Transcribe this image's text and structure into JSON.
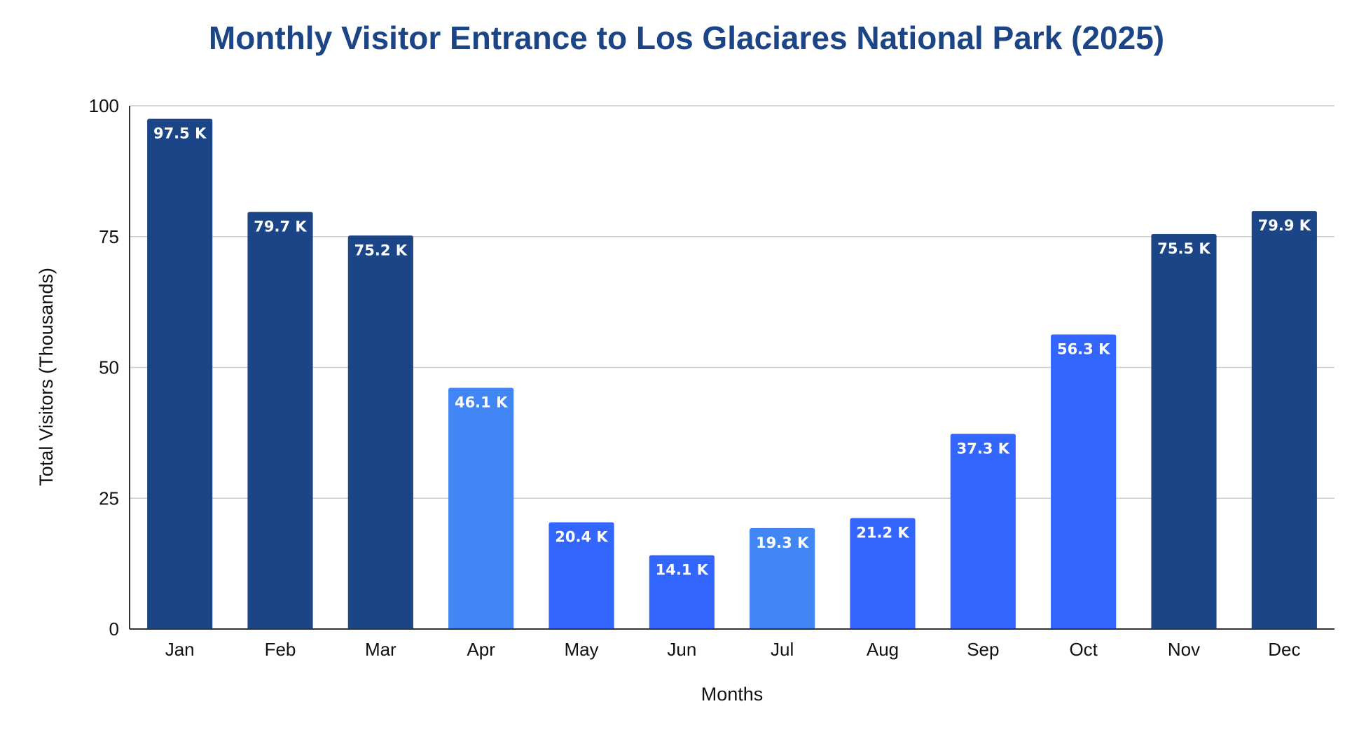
{
  "chart_data": {
    "type": "bar",
    "title": "Monthly Visitor Entrance to Los Glaciares National Park (2025)",
    "xlabel": "Months",
    "ylabel": "Total Visitors (Thousands)",
    "ylim": [
      0,
      100
    ],
    "yticks": [
      "0",
      "25",
      "50",
      "75",
      "100"
    ],
    "grid": true,
    "categories": [
      "Jan",
      "Feb",
      "Mar",
      "Apr",
      "May",
      "Jun",
      "Jul",
      "Aug",
      "Sep",
      "Oct",
      "Nov",
      "Dec"
    ],
    "values": [
      97.5,
      79.7,
      75.2,
      46.1,
      20.4,
      14.1,
      19.3,
      21.2,
      37.3,
      56.3,
      75.5,
      79.9
    ],
    "data_labels": [
      "97.5 K",
      "79.7 K",
      "75.2 K",
      "46.1 K",
      "20.4 K",
      "14.1 K",
      "19.3 K",
      "21.2 K",
      "37.3 K",
      "56.3 K",
      "75.5 K",
      "79.9 K"
    ],
    "bar_colors": [
      "#1c4587",
      "#1c4587",
      "#1c4587",
      "#4285f4",
      "#3366ff",
      "#3366ff",
      "#4285f4",
      "#3366ff",
      "#3366ff",
      "#3366ff",
      "#1c4587",
      "#1c4587"
    ]
  },
  "colors": {
    "title": "#1c4587",
    "gridline": "#cccccc",
    "axis": "#333333",
    "label_text": "#ffffff"
  }
}
